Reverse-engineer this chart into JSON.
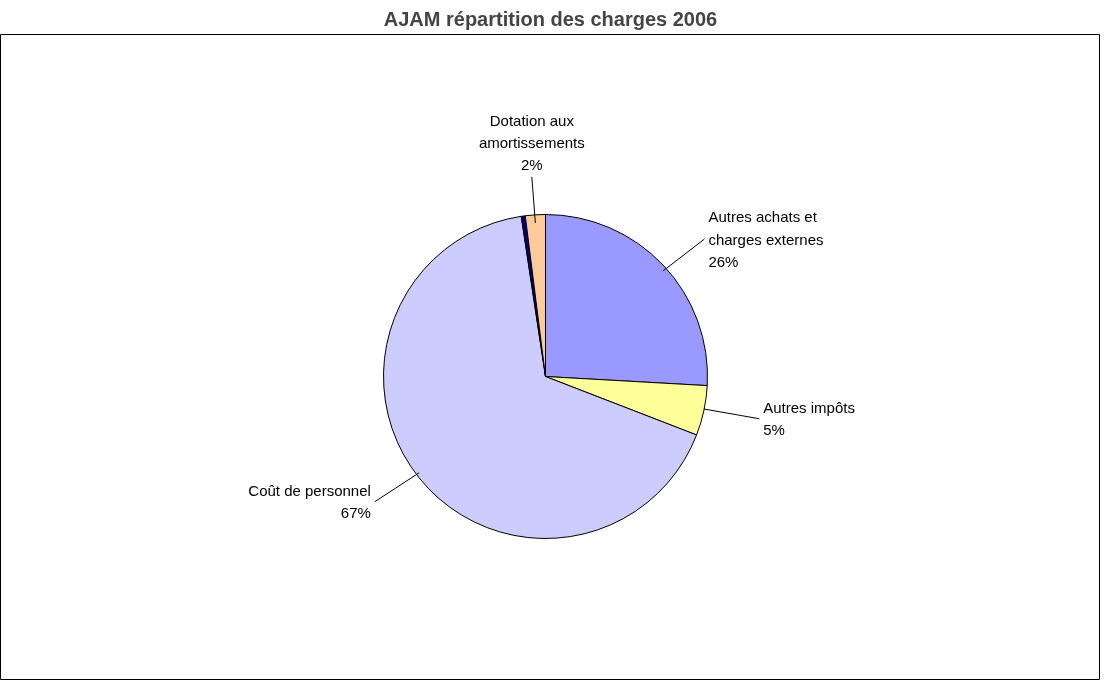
{
  "chart_data": {
    "type": "pie",
    "title": "AJAM répartition des charges 2006",
    "categories": [
      "Autres achats et\ncharges externes",
      "Autres impôts",
      "Coût de personnel",
      null,
      "Dotation aux\namortissements"
    ],
    "values": [
      26,
      5,
      67,
      0.4,
      2
    ],
    "value_labels": [
      "26%",
      "5%",
      "67%",
      null,
      "2%"
    ],
    "colors": [
      "#9999ff",
      "#ffff99",
      "#ccccff",
      "#000080",
      "#ffcc99"
    ]
  }
}
